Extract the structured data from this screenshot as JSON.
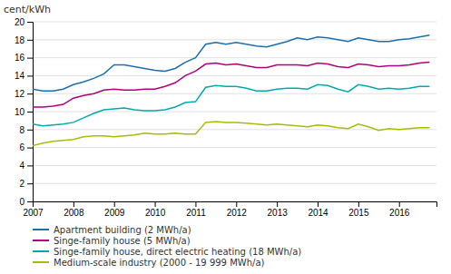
{
  "chart_data": {
    "type": "line",
    "ylabel": "cent/kWh",
    "x": [
      2007.0,
      2007.25,
      2007.5,
      2007.75,
      2008.0,
      2008.25,
      2008.5,
      2008.75,
      2009.0,
      2009.25,
      2009.5,
      2009.75,
      2010.0,
      2010.25,
      2010.5,
      2010.75,
      2011.0,
      2011.25,
      2011.5,
      2011.75,
      2012.0,
      2012.25,
      2012.5,
      2012.75,
      2013.0,
      2013.25,
      2013.5,
      2013.75,
      2014.0,
      2014.25,
      2014.5,
      2014.75,
      2015.0,
      2015.25,
      2015.5,
      2015.75,
      2016.0,
      2016.25,
      2016.5,
      2016.75
    ],
    "series": [
      {
        "name": "Apartment building (2 MWh/a)",
        "color": "#1a6fad",
        "values": [
          12.5,
          12.3,
          12.3,
          12.5,
          13.0,
          13.3,
          13.7,
          14.2,
          15.2,
          15.2,
          15.0,
          14.8,
          14.6,
          14.5,
          14.8,
          15.5,
          16.0,
          17.5,
          17.7,
          17.5,
          17.7,
          17.5,
          17.3,
          17.2,
          17.5,
          17.8,
          18.2,
          18.0,
          18.3,
          18.2,
          18.0,
          17.8,
          18.2,
          18.0,
          17.8,
          17.8,
          18.0,
          18.1,
          18.3,
          18.5
        ]
      },
      {
        "name": "Singe-family house (5 MWh/a)",
        "color": "#b0007a",
        "values": [
          10.5,
          10.5,
          10.6,
          10.8,
          11.5,
          11.8,
          12.0,
          12.4,
          12.5,
          12.4,
          12.4,
          12.5,
          12.5,
          12.8,
          13.2,
          14.0,
          14.5,
          15.3,
          15.4,
          15.2,
          15.3,
          15.1,
          14.9,
          14.9,
          15.2,
          15.2,
          15.2,
          15.1,
          15.4,
          15.3,
          15.0,
          14.9,
          15.3,
          15.2,
          15.0,
          15.1,
          15.1,
          15.2,
          15.4,
          15.5
        ]
      },
      {
        "name": "Singe-family house, direct electric heating (18 MWh/a)",
        "color": "#00aaaa",
        "values": [
          8.6,
          8.4,
          8.5,
          8.6,
          8.8,
          9.3,
          9.8,
          10.2,
          10.3,
          10.4,
          10.2,
          10.1,
          10.1,
          10.2,
          10.5,
          11.0,
          11.1,
          12.7,
          12.9,
          12.8,
          12.8,
          12.6,
          12.3,
          12.3,
          12.5,
          12.6,
          12.6,
          12.5,
          13.0,
          12.9,
          12.5,
          12.2,
          13.0,
          12.8,
          12.5,
          12.6,
          12.5,
          12.6,
          12.8,
          12.8
        ]
      },
      {
        "name": "Medium-scale industry (2000 - 19 999 MWh/a)",
        "color": "#aabc00",
        "values": [
          6.2,
          6.5,
          6.7,
          6.8,
          6.9,
          7.2,
          7.3,
          7.3,
          7.2,
          7.3,
          7.4,
          7.6,
          7.5,
          7.5,
          7.6,
          7.5,
          7.5,
          8.8,
          8.9,
          8.8,
          8.8,
          8.7,
          8.6,
          8.5,
          8.6,
          8.5,
          8.4,
          8.3,
          8.5,
          8.4,
          8.2,
          8.1,
          8.6,
          8.3,
          7.9,
          8.1,
          8.0,
          8.1,
          8.2,
          8.2
        ]
      }
    ],
    "xlim": [
      2007.0,
      2016.92
    ],
    "xticks": [
      2007,
      2008,
      2009,
      2010,
      2011,
      2012,
      2013,
      2014,
      2015,
      2016
    ],
    "ylim": [
      0,
      20
    ],
    "yticks": [
      0,
      2,
      4,
      6,
      8,
      10,
      12,
      14,
      16,
      18,
      20
    ],
    "grid": true,
    "legend": "lower left"
  }
}
